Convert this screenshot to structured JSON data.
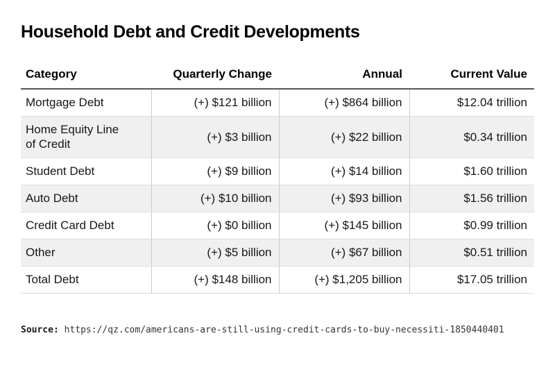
{
  "title": "Household Debt and Credit Developments",
  "chart_data": {
    "type": "table",
    "title": "Household Debt and Credit Developments",
    "columns": [
      {
        "label": "Category",
        "align": "left"
      },
      {
        "label": "Quarterly Change",
        "align": "right"
      },
      {
        "label": "Annual",
        "align": "right"
      },
      {
        "label": "Current Value",
        "align": "right"
      }
    ],
    "rows": [
      {
        "category": "Mortgage Debt",
        "quarterly_change": "(+) $121 billion",
        "annual": "(+) $864 billion",
        "current_value": "$12.04 trillion"
      },
      {
        "category": "Home Equity Line\nof Credit",
        "quarterly_change": "(+) $3 billion",
        "annual": "(+) $22 billion",
        "current_value": "$0.34 trillion"
      },
      {
        "category": "Student Debt",
        "quarterly_change": "(+) $9 billion",
        "annual": "(+) $14 billion",
        "current_value": "$1.60 trillion"
      },
      {
        "category": "Auto Debt",
        "quarterly_change": "(+) $10 billion",
        "annual": "(+) $93 billion",
        "current_value": "$1.56 trillion"
      },
      {
        "category": "Credit Card Debt",
        "quarterly_change": "(+) $0 billion",
        "annual": "(+) $145 billion",
        "current_value": "$0.99 trillion"
      },
      {
        "category": "Other",
        "quarterly_change": "(+) $5 billion",
        "annual": "(+) $67 billion",
        "current_value": "$0.51 trillion"
      },
      {
        "category": "Total Debt",
        "quarterly_change": "(+) $148 billion",
        "annual": "(+) $1,205 billion",
        "current_value": "$17.05 trillion"
      }
    ],
    "layout": {
      "zebra_striping": true,
      "header_rule": true,
      "outer_side_borders": false
    }
  },
  "source": {
    "label": "Source:",
    "url": "https://qz.com/americans-are-still-using-credit-cards-to-buy-necessiti-1850440401"
  },
  "colors": {
    "text": "#161616",
    "header_rule": "#555555",
    "row_divider": "#dcdcdc",
    "column_divider": "#c9c9c9",
    "zebra_row": "#f0f0f0"
  }
}
